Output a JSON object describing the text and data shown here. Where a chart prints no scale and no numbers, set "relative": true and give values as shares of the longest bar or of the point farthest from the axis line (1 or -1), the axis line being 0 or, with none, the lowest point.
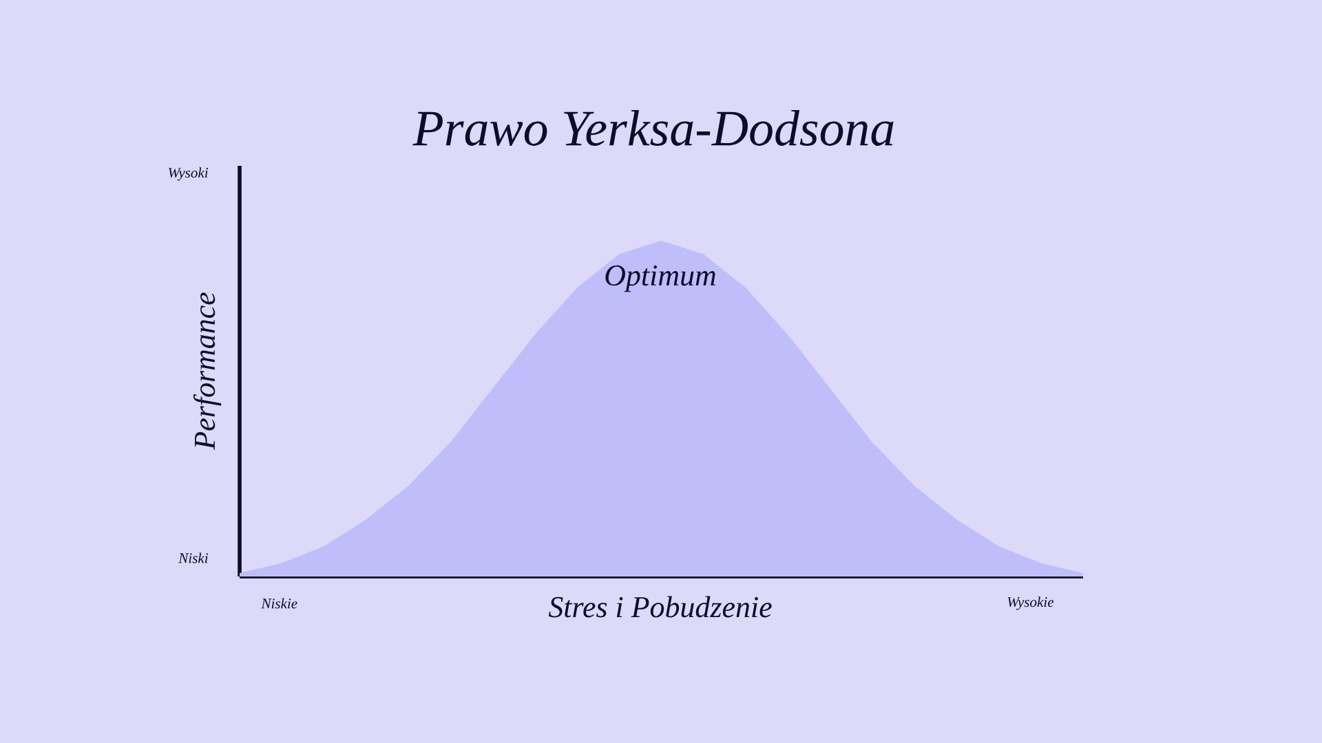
{
  "chart_data": {
    "type": "area",
    "title": "Prawo Yerksa-Dodsona",
    "xlabel": "Stres i Pobudzenie",
    "ylabel": "Performance",
    "categories": [
      null,
      null,
      null,
      null,
      null,
      null,
      null,
      null,
      null,
      null,
      null,
      null,
      null,
      null,
      null,
      null,
      null,
      null,
      null,
      null,
      null
    ],
    "values": [
      0.01,
      0.04,
      0.09,
      0.17,
      0.27,
      0.4,
      0.56,
      0.72,
      0.86,
      0.96,
      1.0,
      0.96,
      0.86,
      0.72,
      0.56,
      0.4,
      0.27,
      0.17,
      0.09,
      0.04,
      0.01
    ],
    "color": "#c0bdfb",
    "relative": true,
    "annotations": [
      "Optimum",
      "Wysoki",
      "Niski",
      "Niskie",
      "Wysokie"
    ]
  }
}
